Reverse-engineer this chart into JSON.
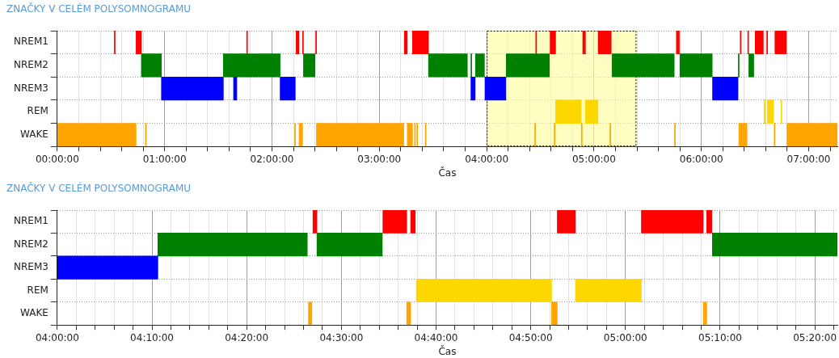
{
  "chart_data": [
    {
      "type": "bar",
      "orientation": "horizontal",
      "title": "ZNAČKY V CELÉM POLYSOMNOGRAMU",
      "xlabel": "Čas",
      "categories": [
        "NREM1",
        "NREM2",
        "NREM3",
        "REM",
        "WAKE"
      ],
      "series": [
        {
          "colors": [
            "#ff0000",
            "#008000",
            "#0000ff",
            "#ffd700",
            "#ffa500"
          ],
          "base": [
            0.531,
            0.783,
            0.97,
            4.642,
            0
          ],
          "values": [
            0.008,
            0.187,
            0.577,
            0.238,
            0.734
          ]
        },
        {
          "colors": [
            "#ff0000",
            "#008000",
            "#0000ff",
            "#ffd700",
            "#ffa500"
          ],
          "base": [
            0.734,
            1.547,
            1.642,
            4.92,
            0.821
          ],
          "values": [
            0.049,
            0.529,
            0.03,
            0.116,
            0.008
          ]
        },
        {
          "colors": [
            "#ff0000",
            "#008000",
            "#0000ff",
            "#ffd700",
            "#ffa500"
          ],
          "base": [
            1.764,
            2.293,
            2.076,
            6.584,
            2.211
          ],
          "values": [
            0.008,
            0.108,
            0.141,
            0.01,
            0.008
          ]
        },
        {
          "colors": [
            "#ff0000",
            "#008000",
            "#0000ff",
            "#ffd700",
            "#ffa500"
          ],
          "base": [
            2.225,
            3.458,
            3.853,
            6.615,
            2.252
          ],
          "values": [
            0.027,
            0.362,
            0.04,
            0.058,
            0.033
          ]
        },
        {
          "colors": [
            "#ff0000",
            "#008000",
            "#0000ff",
            "#ffd700",
            "#ffa500"
          ],
          "base": [
            2.285,
            3.853,
            3.984,
            6.741,
            2.414
          ],
          "values": [
            0.008,
            0.008,
            0.195,
            0.008,
            0.814
          ]
        },
        {
          "colors": [
            "#ff0000",
            "#008000",
            "#0000ff",
            "#ffd700",
            "#ffa500"
          ],
          "base": [
            2.407,
            3.896,
            6.104,
            null,
            3.26
          ],
          "values": [
            0.008,
            0.083,
            0.237,
            null,
            0.049
          ]
        },
        {
          "colors": [
            "#ff0000",
            "#008000",
            "#0000ff",
            "#ffd700",
            "#ffa500"
          ],
          "base": [
            3.233,
            4.182,
            null,
            null,
            3.328
          ],
          "values": [
            0.027,
            0.402,
            null,
            null,
            0.008
          ]
        },
        {
          "colors": [
            "#ff0000",
            "#008000",
            "#0000ff",
            "#ffd700",
            "#ffa500"
          ],
          "base": [
            3.309,
            5.168,
            null,
            null,
            3.349
          ],
          "values": [
            0.149,
            0.579,
            null,
            null,
            0.008
          ]
        },
        {
          "colors": [
            "#ff0000",
            "#008000",
            "#0000ff",
            "#ffd700",
            "#ffa500"
          ],
          "base": [
            4.457,
            5.8,
            null,
            null,
            3.428
          ],
          "values": [
            0.008,
            0.301,
            null,
            null,
            0.008
          ]
        },
        {
          "colors": [
            "#ff0000",
            "#008000",
            "#0000ff",
            "#ffd700",
            "#ffa500"
          ],
          "base": [
            4.591,
            6.344,
            null,
            null,
            4.447
          ],
          "values": [
            0.051,
            0.008,
            null,
            null,
            0.008
          ]
        },
        {
          "colors": [
            "#ff0000",
            "#008000",
            "#0000ff",
            "#ffd700",
            "#ffa500"
          ],
          "base": [
            4.895,
            6.442,
            null,
            null,
            4.629
          ],
          "values": [
            0.025,
            0.046,
            null,
            null,
            0.008
          ]
        },
        {
          "colors": [
            "#ff0000",
            "#008000",
            "#0000ff",
            "#ffd700",
            "#ffa500"
          ],
          "base": [
            5.039,
            null,
            null,
            null,
            4.882
          ],
          "values": [
            0.121,
            null,
            null,
            null,
            0.008
          ]
        },
        {
          "colors": [
            "#ff0000",
            "#008000",
            "#0000ff",
            "#ffd700",
            "#ffa500"
          ],
          "base": [
            5.767,
            null,
            null,
            null,
            5.148
          ],
          "values": [
            0.028,
            null,
            null,
            null,
            0.008
          ]
        },
        {
          "colors": [
            "#ff0000",
            "#008000",
            "#0000ff",
            "#ffd700",
            "#ffa500"
          ],
          "base": [
            6.362,
            null,
            null,
            null,
            5.75
          ],
          "values": [
            0.008,
            null,
            null,
            null,
            0.008
          ]
        },
        {
          "colors": [
            "#ff0000",
            "#008000",
            "#0000ff",
            "#ffd700",
            "#ffa500"
          ],
          "base": [
            6.432,
            null,
            null,
            null,
            6.349
          ],
          "values": [
            0.008,
            null,
            null,
            null,
            0.076
          ]
        },
        {
          "colors": [
            "#ff0000",
            "#008000",
            "#0000ff",
            "#ffd700",
            "#ffa500"
          ],
          "base": [
            6.501,
            null,
            null,
            null,
            6.678
          ],
          "values": [
            0.076,
            null,
            null,
            null,
            0.008
          ]
        },
        {
          "colors": [
            "#ff0000",
            "#008000",
            "#0000ff",
            "#ffd700",
            "#ffa500"
          ],
          "base": [
            6.609,
            null,
            null,
            null,
            6.797
          ],
          "values": [
            0.008,
            null,
            null,
            null,
            0.47
          ]
        },
        {
          "colors": [
            "#ff0000",
            "#008000",
            "#0000ff",
            "#ffd700",
            "#ffa500"
          ],
          "base": [
            6.685,
            null,
            null,
            null,
            null
          ],
          "values": [
            0.106,
            null,
            null,
            null,
            null
          ]
        }
      ],
      "xlim": [
        0,
        7.267
      ],
      "xticks": [
        {
          "value": 0,
          "label": "00:00:00"
        },
        {
          "value": 0.2,
          "label": null
        },
        {
          "value": 0.4,
          "label": null
        },
        {
          "value": 0.6,
          "label": null
        },
        {
          "value": 0.8,
          "label": null
        },
        {
          "value": 1,
          "label": "01:00:00"
        },
        {
          "value": 1.2,
          "label": null
        },
        {
          "value": 1.4,
          "label": null
        },
        {
          "value": 1.6,
          "label": null
        },
        {
          "value": 1.8,
          "label": null
        },
        {
          "value": 2,
          "label": "02:00:00"
        },
        {
          "value": 2.2,
          "label": null
        },
        {
          "value": 2.4,
          "label": null
        },
        {
          "value": 2.6,
          "label": null
        },
        {
          "value": 2.8,
          "label": null
        },
        {
          "value": 3,
          "label": "03:00:00"
        },
        {
          "value": 3.2,
          "label": null
        },
        {
          "value": 3.4,
          "label": null
        },
        {
          "value": 3.6,
          "label": null
        },
        {
          "value": 3.8,
          "label": null
        },
        {
          "value": 4,
          "label": "04:00:00"
        },
        {
          "value": 4.2,
          "label": null
        },
        {
          "value": 4.4,
          "label": null
        },
        {
          "value": 4.6,
          "label": null
        },
        {
          "value": 4.8,
          "label": null
        },
        {
          "value": 5,
          "label": "05:00:00"
        },
        {
          "value": 5.2,
          "label": null
        },
        {
          "value": 5.4,
          "label": null
        },
        {
          "value": 5.6,
          "label": null
        },
        {
          "value": 5.8,
          "label": null
        },
        {
          "value": 6,
          "label": "06:00:00"
        },
        {
          "value": 6.2,
          "label": null
        },
        {
          "value": 6.4,
          "label": null
        },
        {
          "value": 6.6,
          "label": null
        },
        {
          "value": 6.8,
          "label": null
        },
        {
          "value": 7,
          "label": "07:00:00"
        },
        {
          "value": 7.2,
          "label": null
        }
      ],
      "bands": [
        {
          "axis": "x",
          "from": 4,
          "to": 5.395,
          "color": "#ffff99"
        }
      ],
      "grid": true
    },
    {
      "type": "bar",
      "orientation": "horizontal",
      "title": "ZNAČKY V CELÉM POLYSOMNOGRAMU",
      "xlabel": "Čas",
      "categories": [
        "NREM1",
        "NREM2",
        "NREM3",
        "REM",
        "WAKE"
      ],
      "series": [
        {
          "colors": [
            "#ff0000",
            "#008000",
            "#0000ff",
            "#ffd700",
            "#ffa500"
          ],
          "base": [
            4.45,
            4.177,
            4.0,
            4.632,
            4.442
          ],
          "values": [
            0.007,
            0.263,
            0.177,
            0.238,
            0.006
          ]
        },
        {
          "colors": [
            "#ff0000",
            "#008000",
            "#0000ff",
            "#ffd700",
            "#ffa500"
          ],
          "base": [
            4.573,
            4.457,
            null,
            4.912,
            4.615
          ],
          "values": [
            0.042,
            0.115,
            null,
            0.116,
            0.007
          ]
        },
        {
          "colors": [
            "#ff0000",
            "#008000",
            "#0000ff",
            "#ffd700",
            "#ffa500"
          ],
          "base": [
            4.622,
            5.153,
            null,
            null,
            4.87
          ],
          "values": [
            0.008,
            0.22,
            null,
            null,
            0.01
          ]
        },
        {
          "colors": [
            "#ff0000",
            "#008000",
            "#0000ff",
            "#ffd700",
            "#ffa500"
          ],
          "base": [
            4.88,
            null,
            null,
            null,
            5.137
          ],
          "values": [
            0.032,
            null,
            null,
            null,
            0.006
          ]
        },
        {
          "colors": [
            "#ff0000",
            "#008000",
            "#0000ff",
            "#ffd700",
            "#ffa500"
          ],
          "base": [
            5.028,
            null,
            null,
            null,
            null
          ],
          "values": [
            0.109,
            null,
            null,
            null,
            null
          ]
        },
        {
          "colors": [
            "#ff0000",
            "#008000",
            "#0000ff",
            "#ffd700",
            "#ffa500"
          ],
          "base": [
            5.143,
            null,
            null,
            null,
            null
          ],
          "values": [
            0.009,
            null,
            null,
            null,
            null
          ]
        }
      ],
      "xlim": [
        4,
        5.373
      ],
      "xticks": [
        {
          "value": 4,
          "label": "04:00:00"
        },
        {
          "value": 4.0333,
          "label": null
        },
        {
          "value": 4.0667,
          "label": null
        },
        {
          "value": 4.1,
          "label": null
        },
        {
          "value": 4.1333,
          "label": null
        },
        {
          "value": 4.1667,
          "label": "04:10:00"
        },
        {
          "value": 4.2,
          "label": null
        },
        {
          "value": 4.2333,
          "label": null
        },
        {
          "value": 4.2667,
          "label": null
        },
        {
          "value": 4.3,
          "label": null
        },
        {
          "value": 4.3333,
          "label": "04:20:00"
        },
        {
          "value": 4.3667,
          "label": null
        },
        {
          "value": 4.4,
          "label": null
        },
        {
          "value": 4.4333,
          "label": null
        },
        {
          "value": 4.4667,
          "label": null
        },
        {
          "value": 4.5,
          "label": "04:30:00"
        },
        {
          "value": 4.5333,
          "label": null
        },
        {
          "value": 4.5667,
          "label": null
        },
        {
          "value": 4.6,
          "label": null
        },
        {
          "value": 4.6333,
          "label": null
        },
        {
          "value": 4.6667,
          "label": "04:40:00"
        },
        {
          "value": 4.7,
          "label": null
        },
        {
          "value": 4.7333,
          "label": null
        },
        {
          "value": 4.7667,
          "label": null
        },
        {
          "value": 4.8,
          "label": null
        },
        {
          "value": 4.8333,
          "label": "04:50:00"
        },
        {
          "value": 4.8667,
          "label": null
        },
        {
          "value": 4.9,
          "label": null
        },
        {
          "value": 4.9333,
          "label": null
        },
        {
          "value": 4.9667,
          "label": null
        },
        {
          "value": 5,
          "label": "05:00:00"
        },
        {
          "value": 5.0333,
          "label": null
        },
        {
          "value": 5.0667,
          "label": null
        },
        {
          "value": 5.1,
          "label": null
        },
        {
          "value": 5.1333,
          "label": null
        },
        {
          "value": 5.1667,
          "label": "05:10:00"
        },
        {
          "value": 5.2,
          "label": null
        },
        {
          "value": 5.2333,
          "label": null
        },
        {
          "value": 5.2667,
          "label": null
        },
        {
          "value": 5.3,
          "label": null
        },
        {
          "value": 5.3333,
          "label": "05:20:00"
        },
        {
          "value": 5.3667,
          "label": null
        }
      ],
      "grid": true
    }
  ]
}
